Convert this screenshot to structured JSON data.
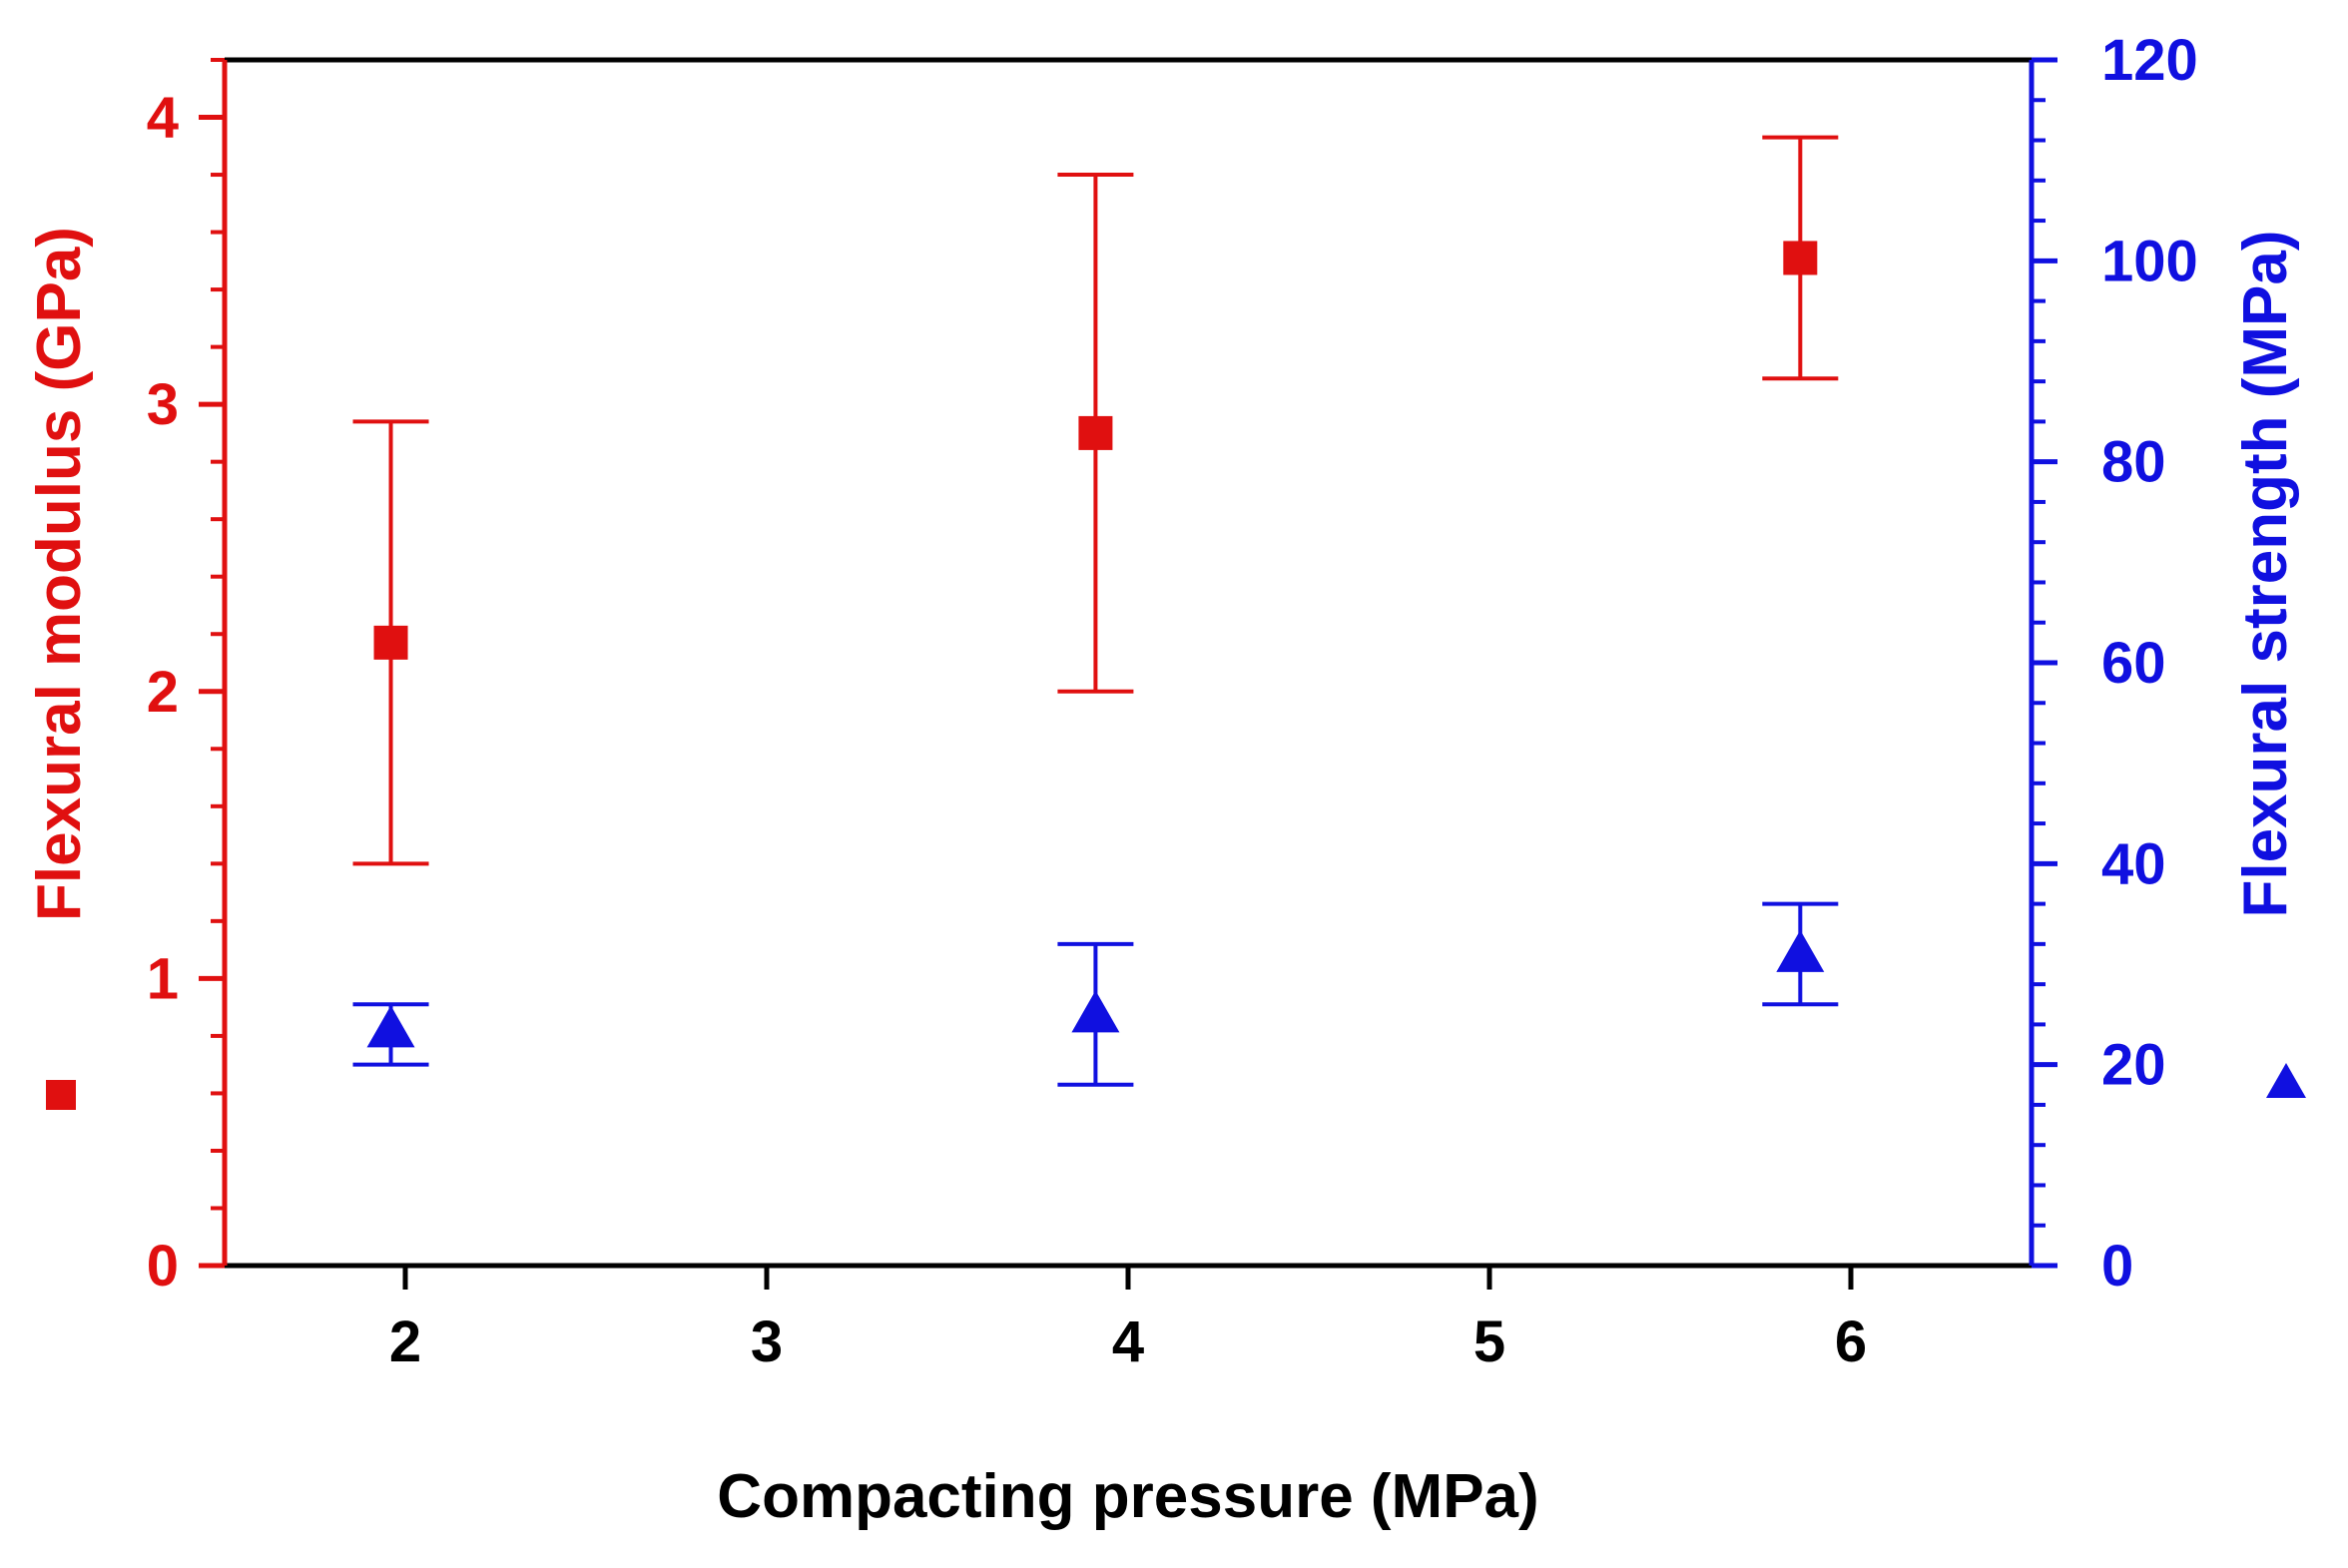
{
  "chart_data": {
    "type": "scatter",
    "xlabel": "Compacting pressure (MPa)",
    "xlim": [
      1.5,
      6.5
    ],
    "xticks": [
      2,
      3,
      4,
      5,
      6
    ],
    "left_axis": {
      "label": "Flexural modulus (GPa)",
      "color": "#e01010",
      "ylim": [
        0,
        4.2
      ],
      "ticks": [
        0,
        1,
        2,
        3,
        4
      ],
      "minor_step": 0.2
    },
    "right_axis": {
      "label": "Flexural strength (MPa)",
      "color": "#1010e0",
      "ylim": [
        0,
        120
      ],
      "ticks": [
        0,
        20,
        40,
        60,
        80,
        100,
        120
      ],
      "minor_step": 4
    },
    "series": [
      {
        "name": "Flexural modulus",
        "axis": "left",
        "marker": "square",
        "color": "#e01010",
        "points": [
          {
            "x": 1.96,
            "y": 2.17,
            "err_low": 1.4,
            "err_high": 2.94
          },
          {
            "x": 3.91,
            "y": 2.9,
            "err_low": 2.0,
            "err_high": 3.8
          },
          {
            "x": 5.86,
            "y": 3.51,
            "err_low": 3.09,
            "err_high": 3.93
          }
        ]
      },
      {
        "name": "Flexural strength",
        "axis": "right",
        "marker": "triangle",
        "color": "#1010e0",
        "points": [
          {
            "x": 1.96,
            "y": 23.5,
            "err_low": 20.0,
            "err_high": 26.0
          },
          {
            "x": 3.91,
            "y": 25.0,
            "err_low": 18.0,
            "err_high": 32.0
          },
          {
            "x": 5.86,
            "y": 31.0,
            "err_low": 26.0,
            "err_high": 36.0
          }
        ]
      }
    ]
  }
}
